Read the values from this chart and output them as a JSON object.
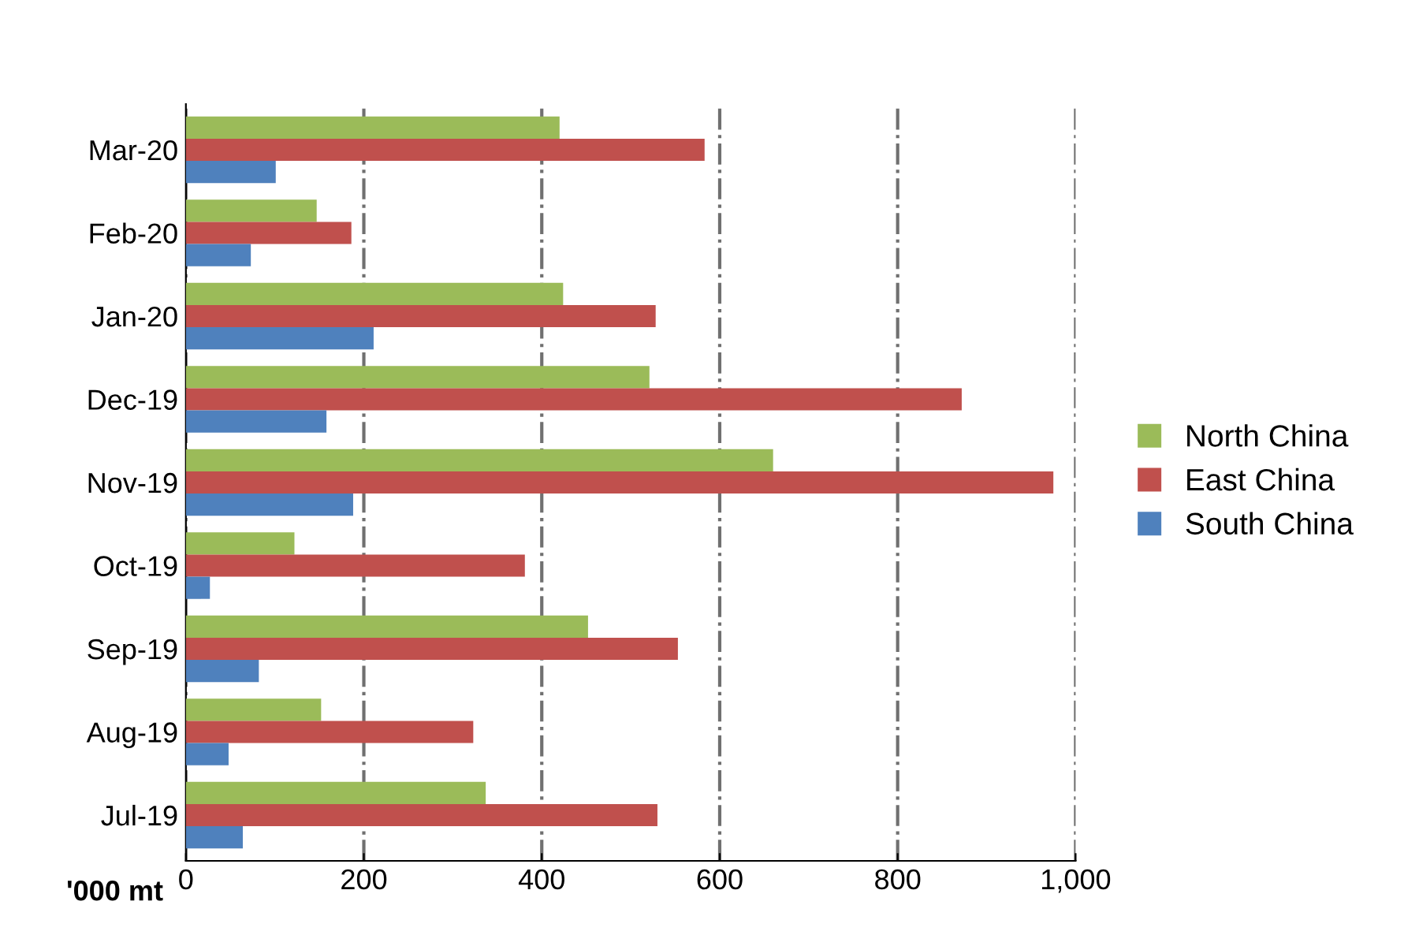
{
  "chart_data": {
    "type": "bar",
    "orientation": "horizontal",
    "categories": [
      "Mar-20",
      "Feb-20",
      "Jan-20",
      "Dec-19",
      "Nov-19",
      "Oct-19",
      "Sep-19",
      "Aug-19",
      "Jul-19"
    ],
    "series": [
      {
        "name": "North China",
        "color": "#9bbb59",
        "values": [
          420,
          147,
          424,
          521,
          660,
          122,
          452,
          152,
          337
        ]
      },
      {
        "name": "East China",
        "color": "#c0504d",
        "values": [
          583,
          186,
          528,
          872,
          975,
          381,
          553,
          323,
          530
        ]
      },
      {
        "name": "South China",
        "color": "#4f81bd",
        "values": [
          101,
          73,
          211,
          158,
          188,
          27,
          82,
          48,
          64
        ]
      }
    ],
    "xlabel": "'000 mt",
    "xlim": [
      0,
      1000
    ],
    "xticks": [
      0,
      200,
      400,
      600,
      800,
      {
        "value": 1000,
        "label": "1,000"
      }
    ],
    "grid": "x",
    "legend": "right"
  }
}
